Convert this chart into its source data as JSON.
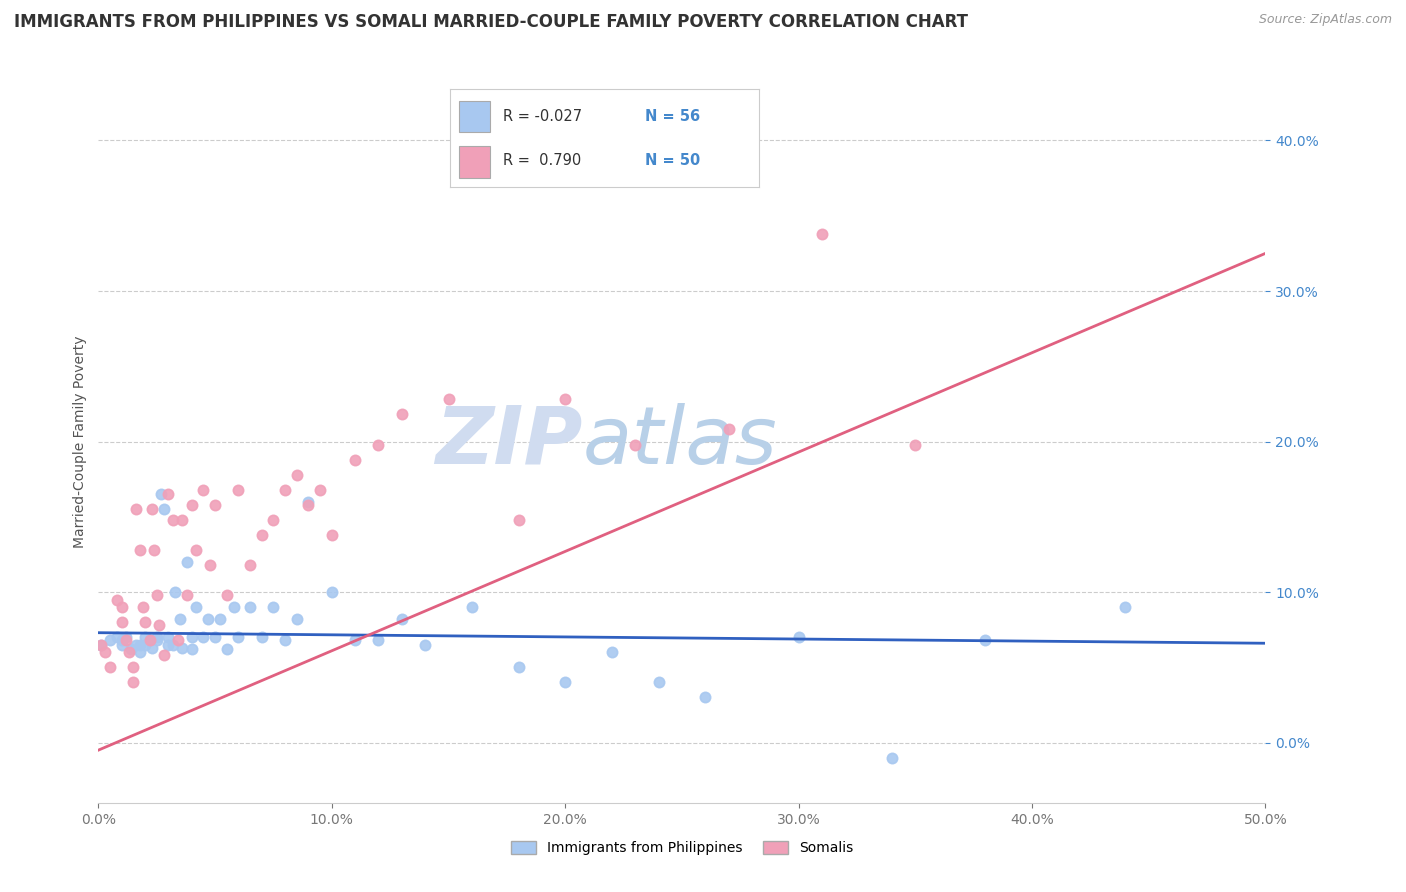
{
  "title": "IMMIGRANTS FROM PHILIPPINES VS SOMALI MARRIED-COUPLE FAMILY POVERTY CORRELATION CHART",
  "source": "Source: ZipAtlas.com",
  "xlim": [
    0.0,
    0.5
  ],
  "ylim": [
    -0.04,
    0.44
  ],
  "ylabel": "Married-Couple Family Poverty",
  "legend_labels": [
    "Immigrants from Philippines",
    "Somalis"
  ],
  "r_philippines": -0.027,
  "n_philippines": 56,
  "r_somali": 0.79,
  "n_somali": 50,
  "blue_color": "#A8C8F0",
  "pink_color": "#F0A0B8",
  "blue_line_color": "#3060C0",
  "pink_line_color": "#E06080",
  "watermark_zip": "ZIP",
  "watermark_atlas": "atlas",
  "title_fontsize": 12,
  "axis_label_fontsize": 10,
  "tick_fontsize": 10,
  "background_color": "#FFFFFF",
  "grid_color": "#CCCCCC",
  "philippines_x": [
    0.001,
    0.005,
    0.008,
    0.01,
    0.01,
    0.012,
    0.014,
    0.016,
    0.018,
    0.018,
    0.02,
    0.02,
    0.022,
    0.023,
    0.025,
    0.025,
    0.027,
    0.028,
    0.03,
    0.03,
    0.032,
    0.033,
    0.035,
    0.036,
    0.038,
    0.04,
    0.04,
    0.042,
    0.045,
    0.047,
    0.05,
    0.052,
    0.055,
    0.058,
    0.06,
    0.065,
    0.07,
    0.075,
    0.08,
    0.085,
    0.09,
    0.1,
    0.11,
    0.12,
    0.13,
    0.14,
    0.16,
    0.18,
    0.2,
    0.22,
    0.24,
    0.26,
    0.3,
    0.34,
    0.38,
    0.44
  ],
  "philippines_y": [
    0.065,
    0.068,
    0.07,
    0.065,
    0.068,
    0.07,
    0.062,
    0.065,
    0.065,
    0.06,
    0.07,
    0.065,
    0.068,
    0.063,
    0.07,
    0.068,
    0.165,
    0.155,
    0.07,
    0.065,
    0.065,
    0.1,
    0.082,
    0.063,
    0.12,
    0.07,
    0.062,
    0.09,
    0.07,
    0.082,
    0.07,
    0.082,
    0.062,
    0.09,
    0.07,
    0.09,
    0.07,
    0.09,
    0.068,
    0.082,
    0.16,
    0.1,
    0.068,
    0.068,
    0.082,
    0.065,
    0.09,
    0.05,
    0.04,
    0.06,
    0.04,
    0.03,
    0.07,
    -0.01,
    0.068,
    0.09
  ],
  "somali_x": [
    0.001,
    0.003,
    0.005,
    0.008,
    0.01,
    0.01,
    0.012,
    0.013,
    0.015,
    0.015,
    0.016,
    0.018,
    0.019,
    0.02,
    0.022,
    0.023,
    0.024,
    0.025,
    0.026,
    0.028,
    0.03,
    0.032,
    0.034,
    0.036,
    0.038,
    0.04,
    0.042,
    0.045,
    0.048,
    0.05,
    0.055,
    0.06,
    0.065,
    0.07,
    0.075,
    0.08,
    0.085,
    0.09,
    0.095,
    0.1,
    0.11,
    0.12,
    0.13,
    0.15,
    0.18,
    0.2,
    0.23,
    0.27,
    0.31,
    0.35
  ],
  "somali_y": [
    0.065,
    0.06,
    0.05,
    0.095,
    0.09,
    0.08,
    0.068,
    0.06,
    0.05,
    0.04,
    0.155,
    0.128,
    0.09,
    0.08,
    0.068,
    0.155,
    0.128,
    0.098,
    0.078,
    0.058,
    0.165,
    0.148,
    0.068,
    0.148,
    0.098,
    0.158,
    0.128,
    0.168,
    0.118,
    0.158,
    0.098,
    0.168,
    0.118,
    0.138,
    0.148,
    0.168,
    0.178,
    0.158,
    0.168,
    0.138,
    0.188,
    0.198,
    0.218,
    0.228,
    0.148,
    0.228,
    0.198,
    0.208,
    0.338,
    0.198
  ],
  "philippines_line_y_start": 0.073,
  "philippines_line_y_end": 0.066,
  "somali_line_y_start": -0.005,
  "somali_line_y_end": 0.325
}
